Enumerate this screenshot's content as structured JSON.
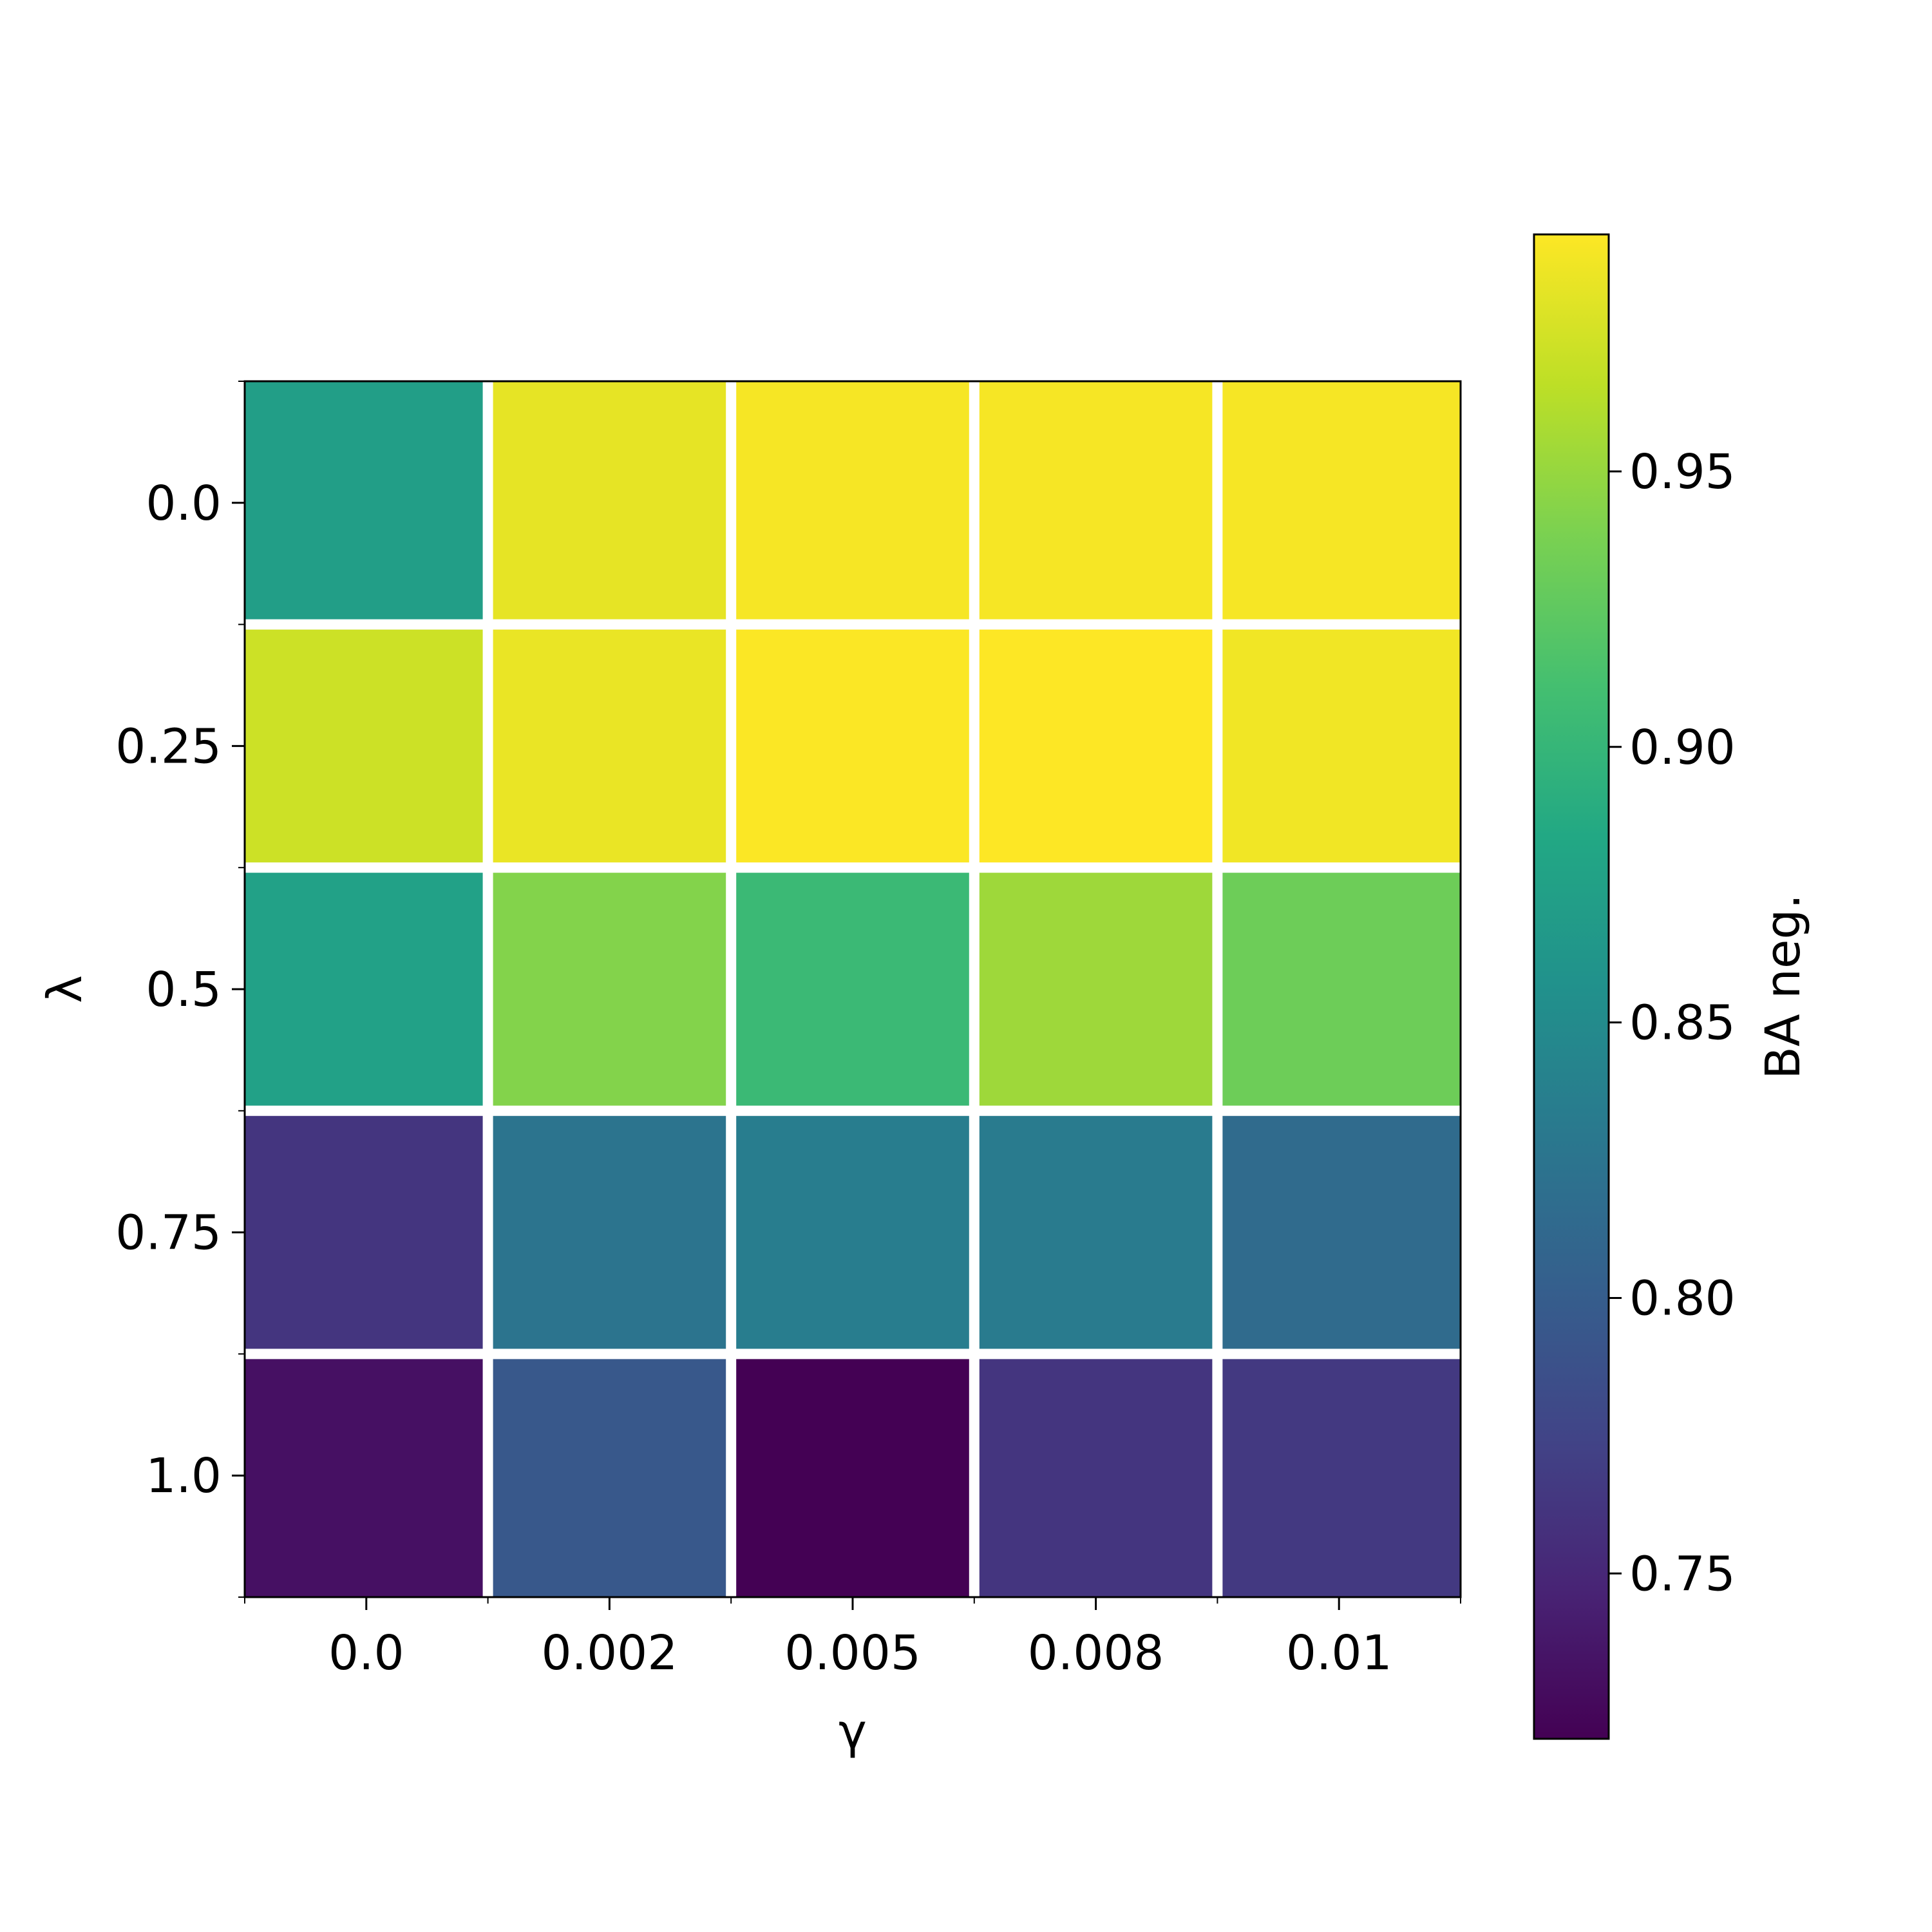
{
  "chart_data": {
    "type": "heatmap",
    "title": "",
    "xlabel": "γ",
    "ylabel": "λ",
    "x_categories": [
      "0.0",
      "0.002",
      "0.005",
      "0.008",
      "0.01"
    ],
    "y_categories": [
      "0.0",
      "0.25",
      "0.5",
      "0.75",
      "1.0"
    ],
    "values": [
      [
        0.872,
        0.983,
        0.99,
        0.99,
        0.99
      ],
      [
        0.972,
        0.985,
        0.992,
        0.993,
        0.988
      ],
      [
        0.875,
        0.942,
        0.904,
        0.953,
        0.932
      ],
      [
        0.762,
        0.825,
        0.835,
        0.832,
        0.815
      ],
      [
        0.732,
        0.795,
        0.72,
        0.762,
        0.765
      ]
    ],
    "colorbar": {
      "label": "BA neg.",
      "range": [
        0.72,
        0.993
      ],
      "ticks": [
        "0.75",
        "0.80",
        "0.85",
        "0.90",
        "0.95"
      ],
      "colormap": "viridis"
    },
    "grid": false,
    "legend": "colorbar-right"
  }
}
